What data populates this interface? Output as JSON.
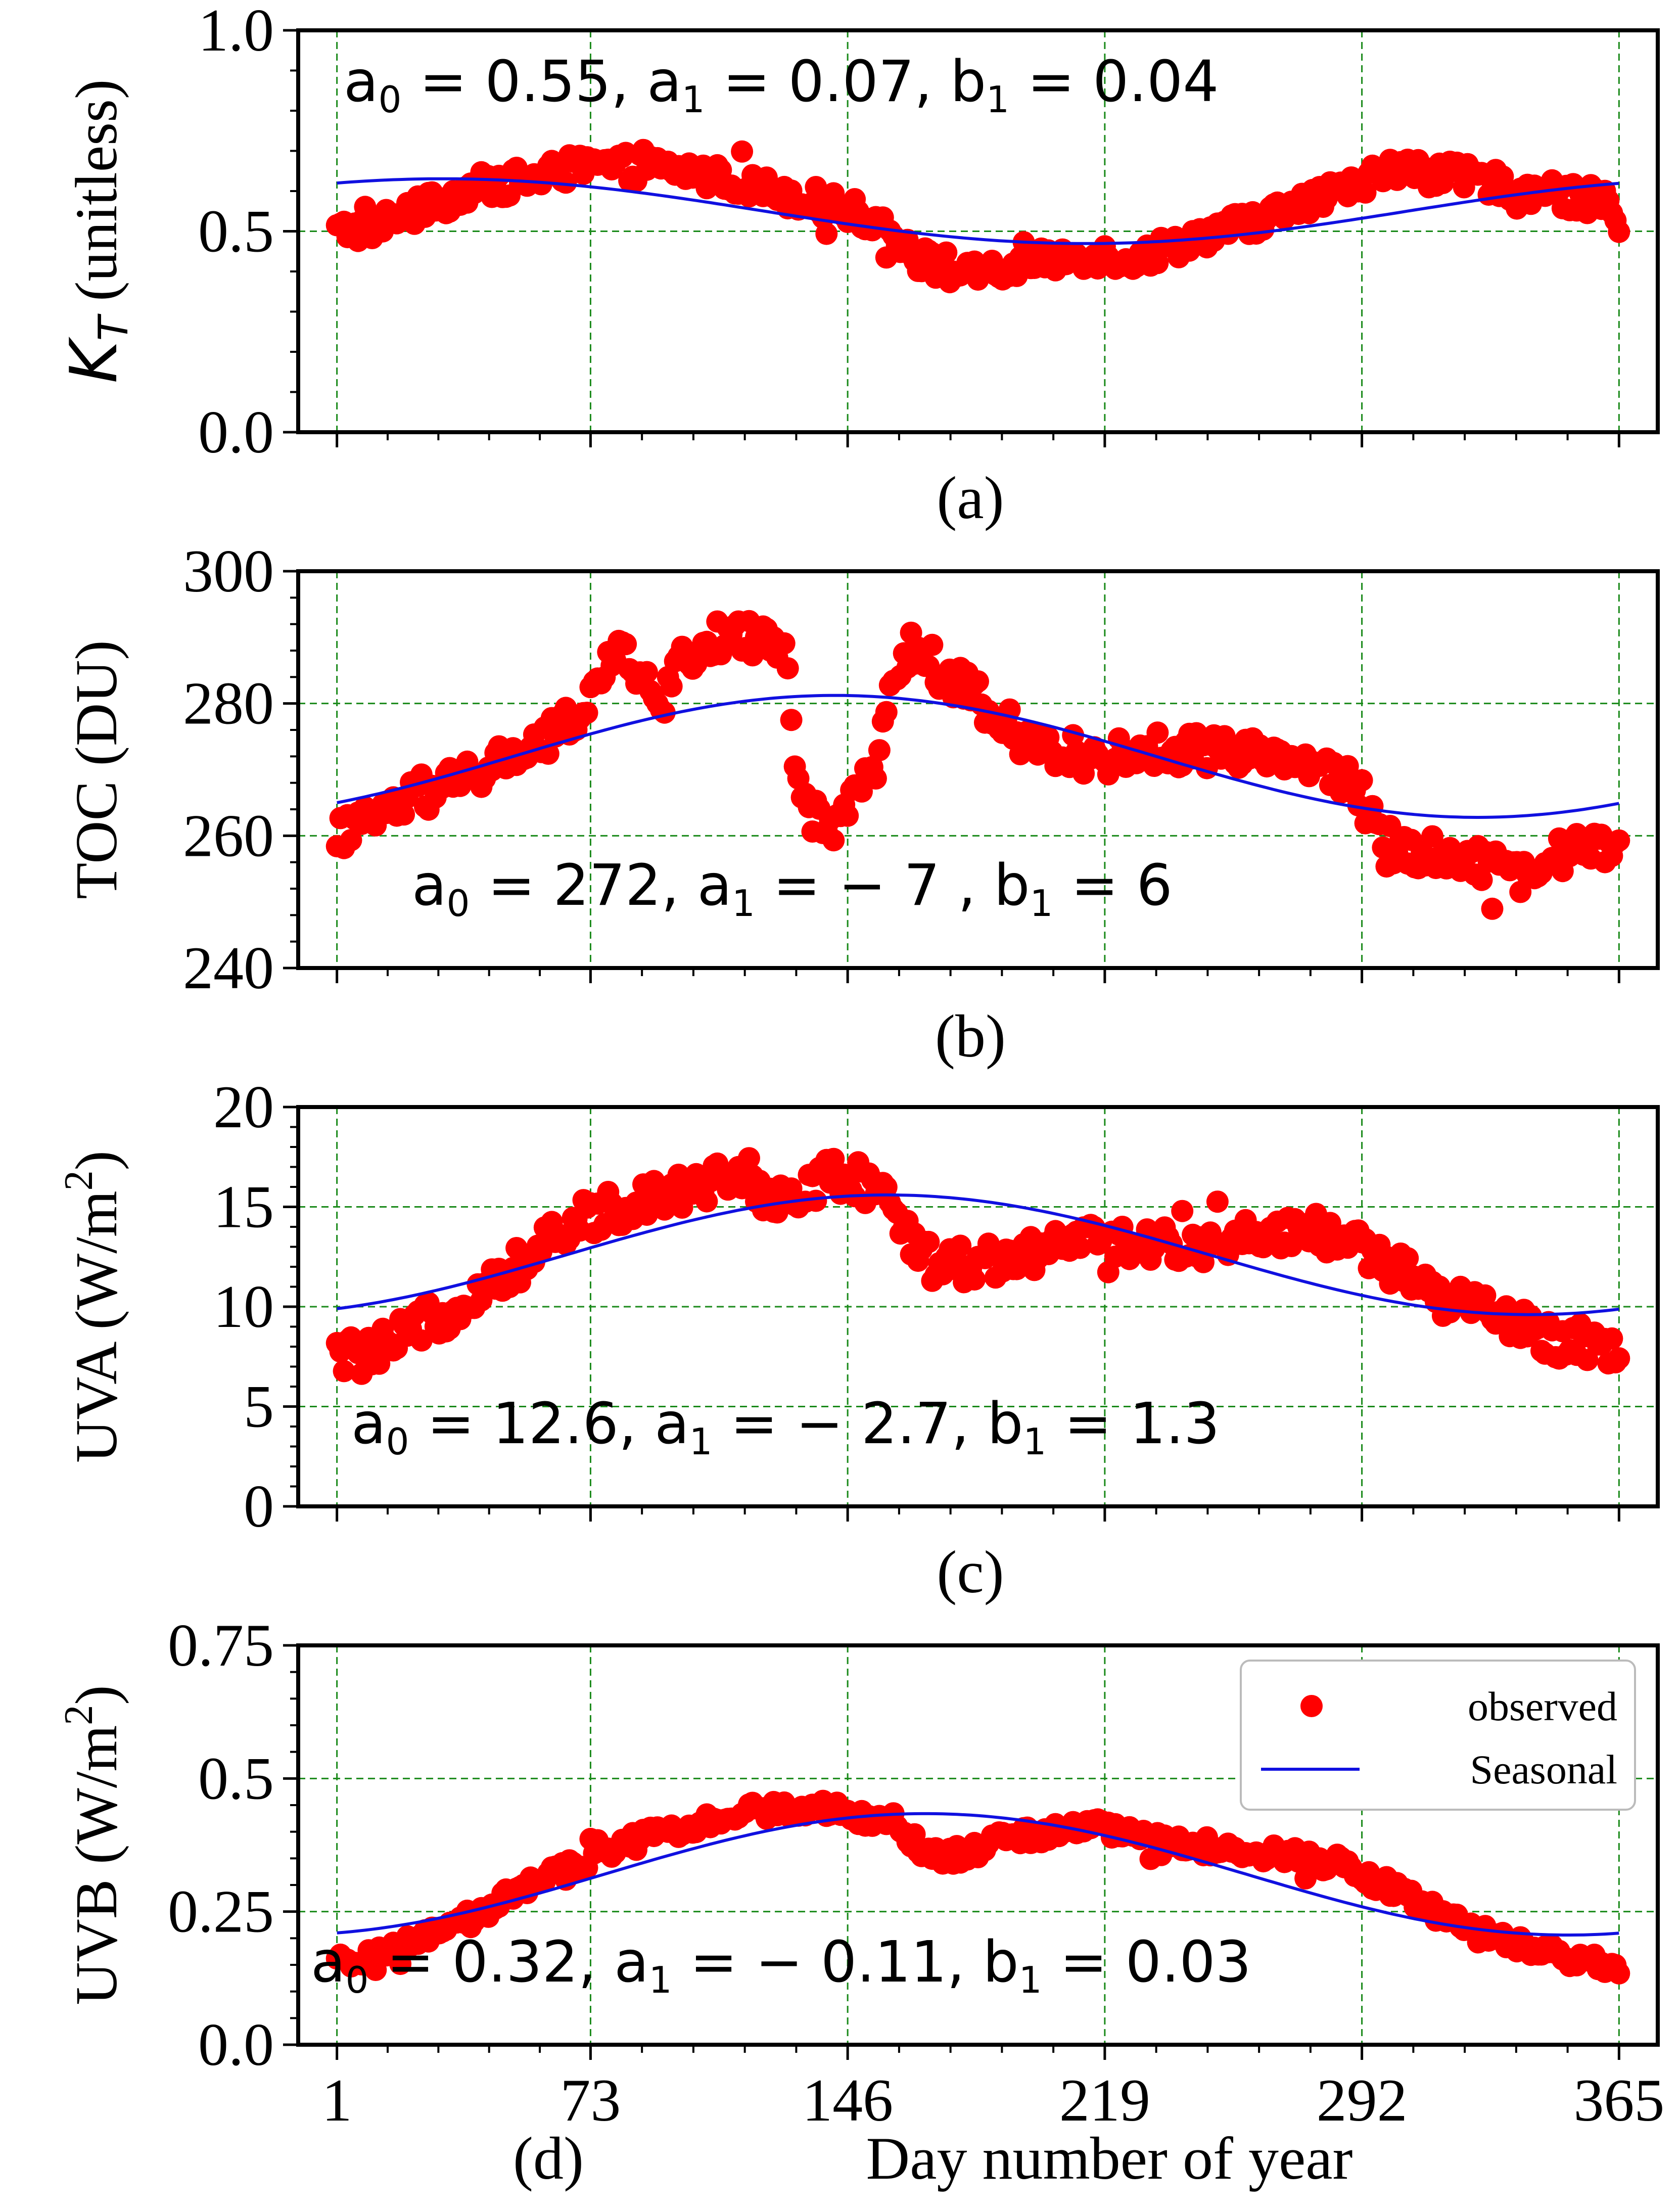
{
  "chart_data": [
    {
      "type": "scatter",
      "id": "a",
      "panel_label": "(a)",
      "ylabel_main": "K",
      "ylabel_sub": "T",
      "ylabel_rest": " (unitless)",
      "ylim": [
        0,
        1
      ],
      "yticks": [
        "0.0",
        "0.5",
        "1.0"
      ],
      "ytick_values": [
        0,
        0.5,
        1.0
      ],
      "xlim": [
        1,
        365
      ],
      "xticks": [
        1,
        73,
        146,
        219,
        292,
        365
      ],
      "grid": true,
      "annotation": {
        "a0": "0.55",
        "a1": "0.07",
        "b1": "0.04",
        "position": "top-left"
      },
      "fit": {
        "a0": 0.55,
        "a1": 0.07,
        "b1": 0.04
      },
      "series": [
        {
          "name": "observed",
          "keypoints": [
            [
              1,
              0.5
            ],
            [
              10,
              0.51
            ],
            [
              20,
              0.54
            ],
            [
              30,
              0.57
            ],
            [
              40,
              0.61
            ],
            [
              50,
              0.62
            ],
            [
              60,
              0.64
            ],
            [
              70,
              0.66
            ],
            [
              80,
              0.66
            ],
            [
              90,
              0.66
            ],
            [
              100,
              0.65
            ],
            [
              110,
              0.63
            ],
            [
              120,
              0.61
            ],
            [
              130,
              0.59
            ],
            [
              140,
              0.57
            ],
            [
              150,
              0.54
            ],
            [
              158,
              0.51
            ],
            [
              165,
              0.44
            ],
            [
              172,
              0.41
            ],
            [
              180,
              0.39
            ],
            [
              190,
              0.4
            ],
            [
              200,
              0.42
            ],
            [
              210,
              0.44
            ],
            [
              219,
              0.44
            ],
            [
              228,
              0.43
            ],
            [
              240,
              0.47
            ],
            [
              250,
              0.5
            ],
            [
              260,
              0.52
            ],
            [
              270,
              0.55
            ],
            [
              280,
              0.58
            ],
            [
              290,
              0.62
            ],
            [
              298,
              0.65
            ],
            [
              306,
              0.65
            ],
            [
              315,
              0.64
            ],
            [
              325,
              0.63
            ],
            [
              335,
              0.61
            ],
            [
              345,
              0.59
            ],
            [
              355,
              0.58
            ],
            [
              362,
              0.58
            ],
            [
              365,
              0.5
            ]
          ],
          "spread": 0.035
        }
      ]
    },
    {
      "type": "scatter",
      "id": "b",
      "panel_label": "(b)",
      "ylabel_main": "TOC (DU)",
      "ylim": [
        240,
        300
      ],
      "yticks": [
        "240",
        "260",
        "280",
        "300"
      ],
      "ytick_values": [
        240,
        260,
        280,
        300
      ],
      "xlim": [
        1,
        365
      ],
      "xticks": [
        1,
        73,
        146,
        219,
        292,
        365
      ],
      "grid": true,
      "annotation": {
        "a0": "272",
        "a1": "− 7 ",
        "b1": "6",
        "position": "bottom-left"
      },
      "fit": {
        "a0": 272,
        "a1": -7,
        "b1": 6
      },
      "series": [
        {
          "name": "observed",
          "keypoints": [
            [
              1,
              260
            ],
            [
              10,
              262
            ],
            [
              20,
              265
            ],
            [
              30,
              267
            ],
            [
              40,
              269
            ],
            [
              50,
              272
            ],
            [
              60,
              274
            ],
            [
              70,
              279
            ],
            [
              78,
              285
            ],
            [
              83,
              289
            ],
            [
              88,
              283
            ],
            [
              93,
              279
            ],
            [
              97,
              285
            ],
            [
              103,
              288
            ],
            [
              110,
              290
            ],
            [
              118,
              290
            ],
            [
              124,
              290
            ],
            [
              128,
              289
            ],
            [
              132,
              266
            ],
            [
              138,
              262
            ],
            [
              145,
              264
            ],
            [
              150,
              267
            ],
            [
              155,
              272
            ],
            [
              159,
              286
            ],
            [
              165,
              287
            ],
            [
              172,
              285
            ],
            [
              180,
              282
            ],
            [
              188,
              277
            ],
            [
              195,
              274
            ],
            [
              205,
              273
            ],
            [
              215,
              272
            ],
            [
              225,
              272
            ],
            [
              235,
              273
            ],
            [
              245,
              273
            ],
            [
              255,
              273
            ],
            [
              265,
              273
            ],
            [
              275,
              271
            ],
            [
              285,
              269
            ],
            [
              290,
              268
            ],
            [
              298,
              259
            ],
            [
              306,
              258
            ],
            [
              315,
              257
            ],
            [
              325,
              256
            ],
            [
              335,
              255
            ],
            [
              345,
              256
            ],
            [
              355,
              259
            ],
            [
              365,
              258
            ]
          ],
          "spread": 2.8
        }
      ]
    },
    {
      "type": "scatter",
      "id": "c",
      "panel_label": "(c)",
      "ylabel_main": "UVA (W/m",
      "ylabel_sup": "2",
      "ylabel_end": ")",
      "ylim": [
        0,
        20
      ],
      "yticks": [
        "0",
        "5",
        "10",
        "15",
        "20"
      ],
      "ytick_values": [
        0,
        5,
        10,
        15,
        20
      ],
      "xlim": [
        1,
        365
      ],
      "xticks": [
        1,
        73,
        146,
        219,
        292,
        365
      ],
      "grid": true,
      "annotation": {
        "a0": "12.6",
        "a1": "− 2.7",
        "b1": "1.3",
        "position": "bottom-left"
      },
      "fit": {
        "a0": 12.6,
        "a1": -2.7,
        "b1": 1.3
      },
      "series": [
        {
          "name": "observed",
          "keypoints": [
            [
              1,
              7.6
            ],
            [
              10,
              7.5
            ],
            [
              20,
              8.5
            ],
            [
              30,
              9.5
            ],
            [
              40,
              10.8
            ],
            [
              50,
              11.8
            ],
            [
              60,
              13.0
            ],
            [
              70,
              14.3
            ],
            [
              80,
              15.0
            ],
            [
              90,
              15.5
            ],
            [
              100,
              16.0
            ],
            [
              110,
              16.3
            ],
            [
              120,
              16.0
            ],
            [
              130,
              15.5
            ],
            [
              140,
              16.5
            ],
            [
              150,
              16.0
            ],
            [
              160,
              15.0
            ],
            [
              165,
              13.0
            ],
            [
              172,
              12.0
            ],
            [
              180,
              12.2
            ],
            [
              190,
              12.5
            ],
            [
              200,
              12.8
            ],
            [
              210,
              13.0
            ],
            [
              220,
              13.5
            ],
            [
              230,
              13.0
            ],
            [
              240,
              13.0
            ],
            [
              250,
              13.3
            ],
            [
              260,
              13.5
            ],
            [
              270,
              13.8
            ],
            [
              280,
              13.8
            ],
            [
              290,
              13.0
            ],
            [
              300,
              12.0
            ],
            [
              310,
              11.0
            ],
            [
              320,
              10.0
            ],
            [
              330,
              9.5
            ],
            [
              340,
              8.8
            ],
            [
              350,
              8.2
            ],
            [
              358,
              8.2
            ],
            [
              365,
              7.4
            ]
          ],
          "spread": 1.0
        }
      ]
    },
    {
      "type": "scatter",
      "id": "d",
      "panel_label": "(d)",
      "ylabel_main": "UVB (W/m",
      "ylabel_sup": "2",
      "ylabel_end": ")",
      "ylim": [
        0,
        0.75
      ],
      "yticks": [
        "0.0",
        "0.25",
        "0.5",
        "0.75"
      ],
      "ytick_values": [
        0,
        0.25,
        0.5,
        0.75
      ],
      "xlim": [
        1,
        365
      ],
      "xticks": [
        1,
        73,
        146,
        219,
        292,
        365
      ],
      "xlabel": "Day number of year",
      "grid": true,
      "annotation": {
        "a0": "0.32",
        "a1": "− 0.11",
        "b1": "0.03",
        "position": "bottom-left"
      },
      "fit": {
        "a0": 0.32,
        "a1": -0.11,
        "b1": 0.03
      },
      "legend": {
        "position": "top-right",
        "entries": [
          "observed",
          "Seasonal"
        ]
      },
      "series": [
        {
          "name": "observed",
          "keypoints": [
            [
              1,
              0.15
            ],
            [
              10,
              0.16
            ],
            [
              20,
              0.18
            ],
            [
              30,
              0.21
            ],
            [
              40,
              0.24
            ],
            [
              50,
              0.28
            ],
            [
              60,
              0.31
            ],
            [
              70,
              0.34
            ],
            [
              80,
              0.37
            ],
            [
              90,
              0.39
            ],
            [
              100,
              0.41
            ],
            [
              110,
              0.43
            ],
            [
              120,
              0.44
            ],
            [
              130,
              0.44
            ],
            [
              140,
              0.44
            ],
            [
              150,
              0.43
            ],
            [
              160,
              0.42
            ],
            [
              168,
              0.36
            ],
            [
              175,
              0.35
            ],
            [
              185,
              0.38
            ],
            [
              195,
              0.39
            ],
            [
              205,
              0.4
            ],
            [
              215,
              0.41
            ],
            [
              225,
              0.4
            ],
            [
              235,
              0.38
            ],
            [
              245,
              0.37
            ],
            [
              255,
              0.37
            ],
            [
              265,
              0.36
            ],
            [
              275,
              0.35
            ],
            [
              285,
              0.34
            ],
            [
              295,
              0.31
            ],
            [
              305,
              0.28
            ],
            [
              315,
              0.24
            ],
            [
              325,
              0.21
            ],
            [
              335,
              0.19
            ],
            [
              345,
              0.17
            ],
            [
              355,
              0.16
            ],
            [
              365,
              0.14
            ]
          ],
          "spread": 0.018
        },
        {
          "name": "Seasonal"
        }
      ]
    }
  ],
  "colors": {
    "observed": "#ff0000",
    "seasonal": "#1010e0",
    "grid": "#1a8a1a"
  }
}
